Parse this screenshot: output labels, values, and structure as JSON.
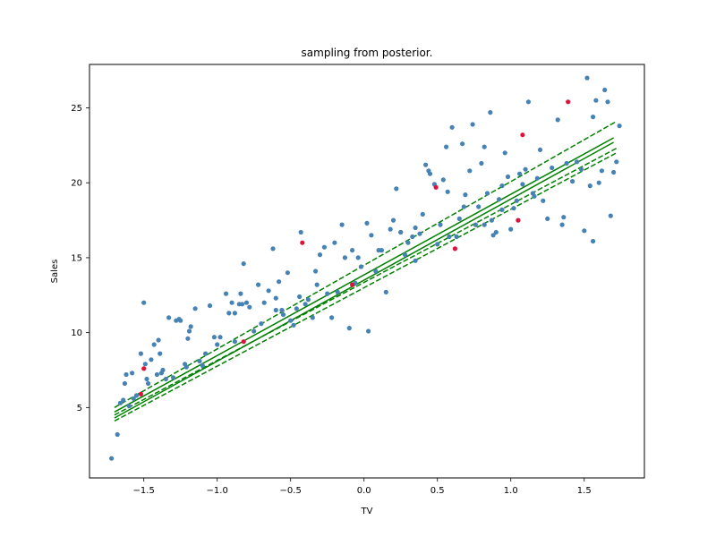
{
  "chart_data": {
    "type": "scatter",
    "title": "sampling from posterior.",
    "xlabel": "TV",
    "ylabel": "Sales",
    "xlim": [
      -1.87,
      1.91
    ],
    "ylim": [
      0.3,
      27.9
    ],
    "xticks": [
      -1.5,
      -1.0,
      -0.5,
      0.0,
      0.5,
      1.0,
      1.5
    ],
    "xtick_labels": [
      "−1.5",
      "−1.0",
      "−0.5",
      "0.0",
      "0.5",
      "1.0",
      "1.5"
    ],
    "yticks": [
      5,
      10,
      15,
      20,
      25
    ],
    "ytick_labels": [
      "5",
      "10",
      "15",
      "20",
      "25"
    ],
    "grid": false,
    "legend": "none",
    "colors": {
      "points": "#4682b4",
      "highlight": "#dc143c",
      "lines": "#008000"
    },
    "series": [
      {
        "marker": "circle",
        "color": "#4682b4",
        "points": [
          [
            -1.72,
            1.6
          ],
          [
            -1.68,
            3.2
          ],
          [
            -1.66,
            5.3
          ],
          [
            -1.64,
            5.5
          ],
          [
            -1.63,
            6.6
          ],
          [
            -1.62,
            7.2
          ],
          [
            -1.6,
            5.1
          ],
          [
            -1.58,
            7.3
          ],
          [
            -1.57,
            5.6
          ],
          [
            -1.55,
            5.8
          ],
          [
            -1.52,
            8.6
          ],
          [
            -1.5,
            12.0
          ],
          [
            -1.49,
            7.9
          ],
          [
            -1.48,
            6.9
          ],
          [
            -1.47,
            6.6
          ],
          [
            -1.45,
            8.2
          ],
          [
            -1.43,
            9.2
          ],
          [
            -1.41,
            7.2
          ],
          [
            -1.4,
            9.5
          ],
          [
            -1.39,
            8.6
          ],
          [
            -1.38,
            7.3
          ],
          [
            -1.35,
            6.9
          ],
          [
            -1.33,
            11.0
          ],
          [
            -1.3,
            7.0
          ],
          [
            -1.28,
            10.8
          ],
          [
            -1.26,
            10.9
          ],
          [
            -1.25,
            10.8
          ],
          [
            -1.22,
            7.9
          ],
          [
            -1.2,
            9.6
          ],
          [
            -1.19,
            10.1
          ],
          [
            -1.18,
            10.4
          ],
          [
            -1.15,
            11.6
          ],
          [
            -1.12,
            8.1
          ],
          [
            -1.1,
            7.8
          ],
          [
            -1.08,
            8.6
          ],
          [
            -1.05,
            11.8
          ],
          [
            -1.02,
            9.7
          ],
          [
            -1.0,
            9.2
          ],
          [
            -0.98,
            9.7
          ],
          [
            -0.94,
            12.6
          ],
          [
            -0.92,
            11.3
          ],
          [
            -0.9,
            12.0
          ],
          [
            -0.88,
            9.4
          ],
          [
            -0.85,
            11.9
          ],
          [
            -0.84,
            12.6
          ],
          [
            -0.83,
            11.9
          ],
          [
            -0.82,
            14.6
          ],
          [
            -0.8,
            12.0
          ],
          [
            -0.78,
            11.7
          ],
          [
            -0.75,
            10.1
          ],
          [
            -0.72,
            13.2
          ],
          [
            -0.7,
            10.6
          ],
          [
            -0.68,
            12.0
          ],
          [
            -0.65,
            12.8
          ],
          [
            -0.62,
            15.6
          ],
          [
            -0.6,
            12.3
          ],
          [
            -0.58,
            13.4
          ],
          [
            -0.55,
            11.2
          ],
          [
            -0.52,
            14.0
          ],
          [
            -0.5,
            10.8
          ],
          [
            -0.48,
            10.5
          ],
          [
            -0.46,
            11.6
          ],
          [
            -0.44,
            12.4
          ],
          [
            -0.43,
            16.7
          ],
          [
            -0.4,
            11.9
          ],
          [
            -0.38,
            12.2
          ],
          [
            -0.35,
            11.0
          ],
          [
            -0.33,
            14.1
          ],
          [
            -0.32,
            13.2
          ],
          [
            -0.3,
            15.2
          ],
          [
            -0.27,
            15.7
          ],
          [
            -0.25,
            12.6
          ],
          [
            -0.22,
            11.0
          ],
          [
            -0.2,
            16.0
          ],
          [
            -0.18,
            12.7
          ],
          [
            -0.15,
            17.2
          ],
          [
            -0.13,
            15.0
          ],
          [
            -0.1,
            10.3
          ],
          [
            -0.08,
            15.5
          ],
          [
            -0.06,
            13.3
          ],
          [
            -0.04,
            15.0
          ],
          [
            -0.02,
            14.4
          ],
          [
            0.02,
            17.3
          ],
          [
            0.03,
            10.1
          ],
          [
            0.05,
            16.5
          ],
          [
            0.08,
            14.1
          ],
          [
            0.12,
            15.5
          ],
          [
            0.15,
            12.7
          ],
          [
            0.18,
            16.9
          ],
          [
            0.2,
            17.5
          ],
          [
            0.22,
            19.6
          ],
          [
            0.25,
            16.7
          ],
          [
            0.28,
            15.2
          ],
          [
            0.3,
            16.0
          ],
          [
            0.33,
            16.4
          ],
          [
            0.35,
            14.8
          ],
          [
            0.38,
            16.6
          ],
          [
            0.4,
            17.9
          ],
          [
            0.42,
            21.2
          ],
          [
            0.44,
            20.8
          ],
          [
            0.45,
            20.6
          ],
          [
            0.48,
            19.9
          ],
          [
            0.5,
            15.9
          ],
          [
            0.52,
            17.2
          ],
          [
            0.54,
            20.2
          ],
          [
            0.56,
            22.4
          ],
          [
            0.58,
            16.4
          ],
          [
            0.6,
            23.7
          ],
          [
            0.63,
            16.4
          ],
          [
            0.65,
            17.6
          ],
          [
            0.67,
            22.6
          ],
          [
            0.69,
            19.2
          ],
          [
            0.72,
            20.8
          ],
          [
            0.74,
            23.9
          ],
          [
            0.76,
            17.2
          ],
          [
            0.78,
            18.4
          ],
          [
            0.8,
            21.3
          ],
          [
            0.82,
            22.4
          ],
          [
            0.84,
            19.3
          ],
          [
            0.86,
            24.7
          ],
          [
            0.88,
            16.5
          ],
          [
            0.9,
            16.7
          ],
          [
            0.92,
            18.9
          ],
          [
            0.94,
            19.8
          ],
          [
            0.96,
            22.0
          ],
          [
            0.98,
            20.4
          ],
          [
            1.0,
            16.9
          ],
          [
            1.02,
            18.3
          ],
          [
            1.04,
            18.8
          ],
          [
            1.06,
            20.6
          ],
          [
            1.08,
            19.9
          ],
          [
            1.1,
            20.9
          ],
          [
            1.12,
            25.4
          ],
          [
            1.15,
            19.3
          ],
          [
            1.18,
            20.3
          ],
          [
            1.2,
            22.2
          ],
          [
            1.22,
            18.8
          ],
          [
            1.25,
            17.6
          ],
          [
            1.28,
            21.0
          ],
          [
            1.32,
            24.2
          ],
          [
            1.35,
            17.2
          ],
          [
            1.38,
            21.3
          ],
          [
            1.42,
            20.1
          ],
          [
            1.45,
            21.4
          ],
          [
            1.48,
            20.9
          ],
          [
            1.52,
            27.0
          ],
          [
            1.54,
            19.8
          ],
          [
            1.56,
            24.4
          ],
          [
            1.58,
            25.5
          ],
          [
            1.6,
            20.0
          ],
          [
            1.62,
            20.8
          ],
          [
            1.64,
            26.2
          ],
          [
            1.66,
            25.4
          ],
          [
            1.68,
            17.8
          ],
          [
            1.7,
            20.7
          ],
          [
            1.72,
            21.4
          ],
          [
            1.74,
            23.8
          ],
          [
            1.36,
            17.7
          ],
          [
            1.56,
            16.1
          ],
          [
            1.5,
            16.8
          ],
          [
            -1.37,
            7.5
          ],
          [
            -1.21,
            7.7
          ],
          [
            0.68,
            18.4
          ],
          [
            0.82,
            17.2
          ],
          [
            0.87,
            17.5
          ],
          [
            0.94,
            18.2
          ],
          [
            1.16,
            19.1
          ],
          [
            -0.88,
            11.3
          ],
          [
            -0.6,
            11.5
          ],
          [
            -0.56,
            11.5
          ],
          [
            0.57,
            19.4
          ],
          [
            0.35,
            17.0
          ],
          [
            0.25,
            16.7
          ],
          [
            0.1,
            15.5
          ]
        ]
      },
      {
        "marker": "circle",
        "color": "#dc143c",
        "points": [
          [
            -1.5,
            7.6
          ],
          [
            -1.52,
            5.9
          ],
          [
            -0.82,
            9.4
          ],
          [
            -0.42,
            16.0
          ],
          [
            -0.08,
            13.2
          ],
          [
            0.49,
            19.7
          ],
          [
            0.62,
            15.6
          ],
          [
            1.05,
            17.5
          ],
          [
            1.08,
            23.2
          ],
          [
            1.39,
            25.4
          ]
        ]
      },
      {
        "style": "solid",
        "color": "#008000",
        "points": [
          [
            -1.7,
            4.7
          ],
          [
            1.7,
            23.0
          ]
        ]
      },
      {
        "style": "solid",
        "color": "#008000",
        "points": [
          [
            -1.7,
            4.3
          ],
          [
            1.7,
            22.7
          ]
        ]
      },
      {
        "style": "dashed",
        "color": "#008000",
        "points": [
          [
            -1.7,
            5.0
          ],
          [
            1.72,
            24.1
          ]
        ]
      },
      {
        "style": "dashed",
        "color": "#008000",
        "points": [
          [
            -1.7,
            4.5
          ],
          [
            1.72,
            22.3
          ]
        ]
      },
      {
        "style": "dashed",
        "color": "#008000",
        "points": [
          [
            -1.7,
            4.1
          ],
          [
            1.72,
            22.0
          ]
        ]
      }
    ]
  }
}
